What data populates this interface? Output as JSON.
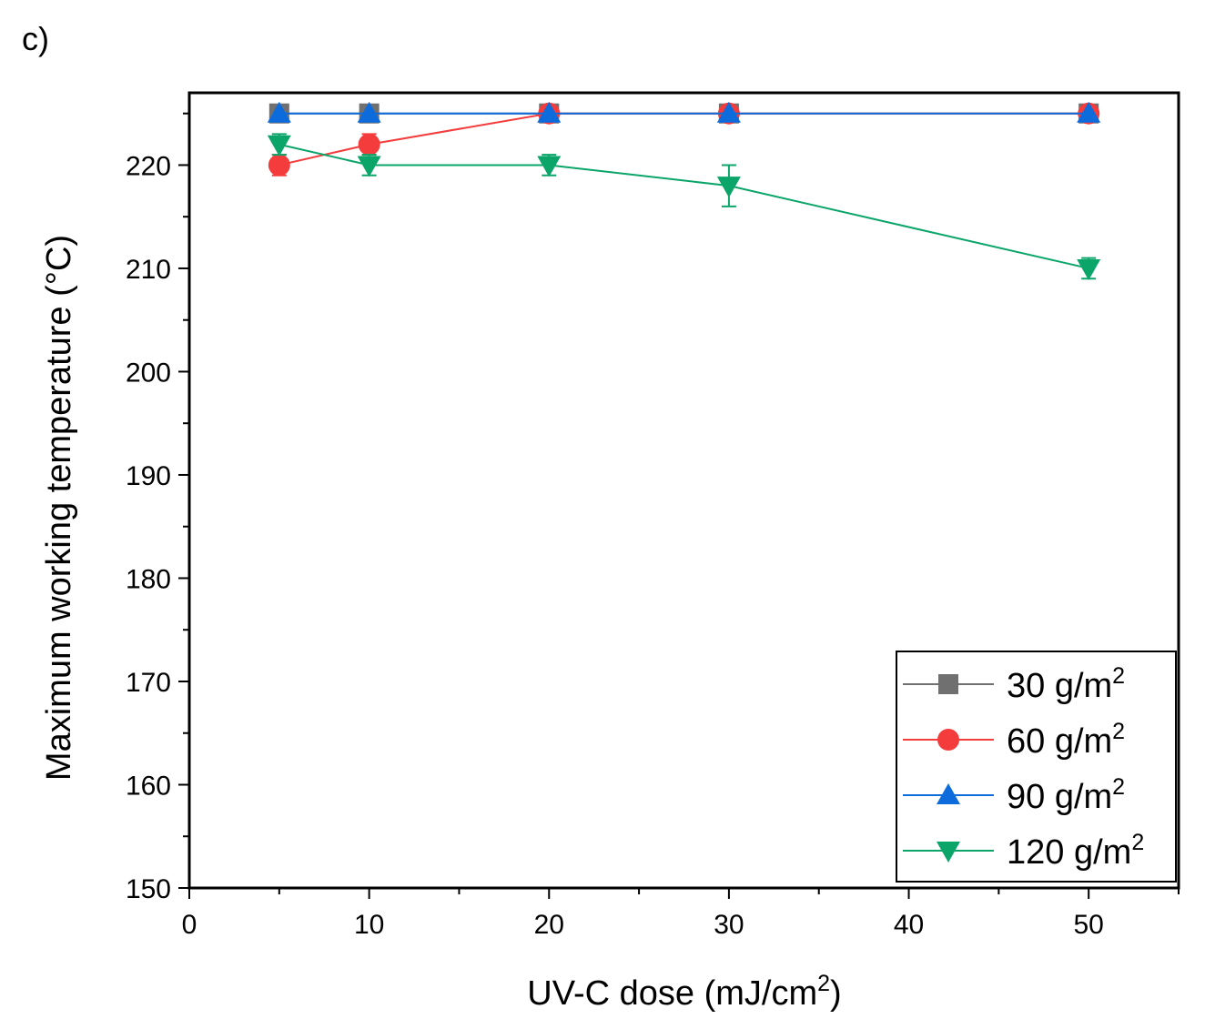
{
  "panel_label": "c)",
  "chart_data": {
    "type": "line",
    "xlabel": "UV-C dose (mJ/cm",
    "xlabel_sup": "2",
    "xlabel_end": ")",
    "ylabel": "Maximum working temperature (°C)",
    "xlim": [
      0,
      55
    ],
    "ylim": [
      150,
      227
    ],
    "xticks": [
      0,
      10,
      20,
      30,
      40,
      50
    ],
    "yticks": [
      150,
      160,
      170,
      180,
      190,
      200,
      210,
      220
    ],
    "x": [
      5,
      10,
      20,
      30,
      50
    ],
    "series": [
      {
        "name": "30 g/m",
        "sup": "2",
        "marker": "square",
        "color": "#707070",
        "values": [
          225,
          225,
          225,
          225,
          225
        ],
        "errors": [
          0,
          0,
          0,
          0,
          0
        ]
      },
      {
        "name": "60 g/m",
        "sup": "2",
        "marker": "circle",
        "color": "#f53c3c",
        "values": [
          220,
          222,
          225,
          225,
          225
        ],
        "errors": [
          1,
          1,
          0,
          0,
          0
        ]
      },
      {
        "name": "90 g/m",
        "sup": "2",
        "marker": "triangle-up",
        "color": "#0d6bdc",
        "values": [
          225,
          225,
          225,
          225,
          225
        ],
        "errors": [
          0,
          0,
          0,
          0,
          0
        ]
      },
      {
        "name": "120 g/m",
        "sup": "2",
        "marker": "triangle-down",
        "color": "#0ba56a",
        "values": [
          222,
          220,
          220,
          218,
          210
        ],
        "errors": [
          1,
          1,
          1,
          2,
          1
        ]
      }
    ],
    "legend_position": "bottom-right"
  }
}
